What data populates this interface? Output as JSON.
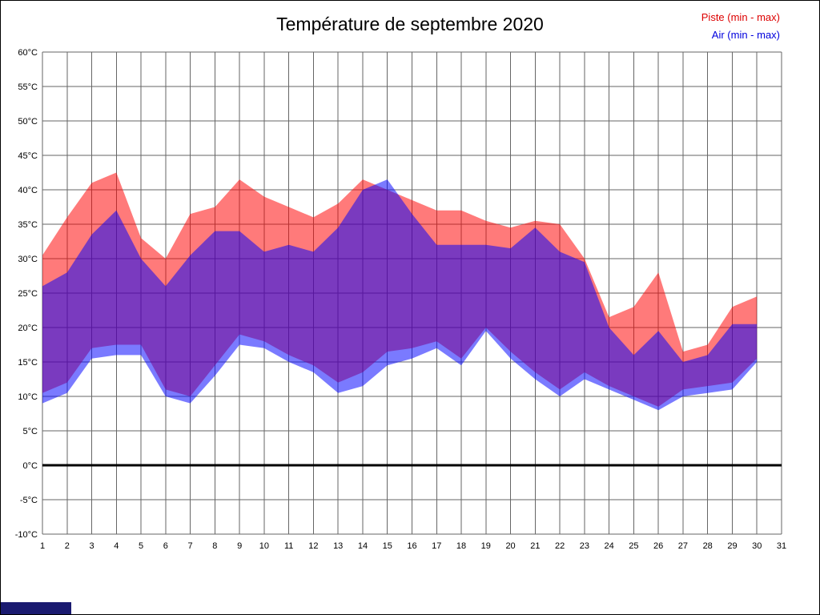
{
  "chart": {
    "title": "Température de septembre 2020",
    "legend": {
      "piste": "Piste (min - max)",
      "air": "Air (min - max)"
    },
    "colors": {
      "piste_text": "#dd0000",
      "air_text": "#0000dd",
      "piste_fill": "rgba(255,0,0,0.52)",
      "air_fill": "rgba(0,0,255,0.52)",
      "grid": "#666666",
      "zero_line": "#000000",
      "tick_text": "#000000",
      "corner_artifact": "#1a1a70"
    }
  },
  "chart_data": {
    "type": "area",
    "title": "Température de septembre 2020",
    "xlabel": "",
    "ylabel": "",
    "xlim": [
      1,
      31
    ],
    "ylim": [
      -10,
      60
    ],
    "grid": true,
    "legend_position": "top-right",
    "x": [
      1,
      2,
      3,
      4,
      5,
      6,
      7,
      8,
      9,
      10,
      11,
      12,
      13,
      14,
      15,
      16,
      17,
      18,
      19,
      20,
      21,
      22,
      23,
      24,
      25,
      26,
      27,
      28,
      29,
      30
    ],
    "x_tick_labels": [
      "1",
      "2",
      "3",
      "4",
      "5",
      "6",
      "7",
      "8",
      "9",
      "10",
      "11",
      "12",
      "13",
      "14",
      "15",
      "16",
      "17",
      "18",
      "19",
      "20",
      "21",
      "22",
      "23",
      "24",
      "25",
      "26",
      "27",
      "28",
      "29",
      "30",
      "31"
    ],
    "y_tick_labels": [
      "60°C",
      "55°C",
      "50°C",
      "45°C",
      "40°C",
      "35°C",
      "30°C",
      "25°C",
      "20°C",
      "15°C",
      "10°C",
      "5°C",
      "0°C",
      "-5°C",
      "-10°C"
    ],
    "series": [
      {
        "name": "Piste max",
        "color": "#ff0000",
        "values": [
          30.5,
          36,
          41,
          42.5,
          33,
          30,
          36.5,
          37.5,
          41.5,
          39,
          37.5,
          36,
          38,
          41.5,
          40,
          38.5,
          37,
          37,
          35.5,
          34.5,
          35.5,
          35,
          30,
          21.5,
          23,
          28,
          16.5,
          17.5,
          23,
          24.5
        ]
      },
      {
        "name": "Piste min",
        "color": "#ff0000",
        "values": [
          10.5,
          12,
          17,
          17.5,
          17.5,
          11,
          10,
          14.5,
          19,
          18,
          16,
          14.5,
          12,
          13.5,
          16.5,
          17,
          18,
          15.5,
          20,
          16.5,
          13.5,
          11,
          13.5,
          11.5,
          10,
          8.5,
          11,
          11.5,
          12,
          15.5
        ]
      },
      {
        "name": "Air max",
        "color": "#0000ff",
        "values": [
          26,
          28,
          33.5,
          37,
          30,
          26,
          30.5,
          34,
          34,
          31,
          32,
          31,
          34.5,
          40,
          41.5,
          36.5,
          32,
          32,
          32,
          31.5,
          34.5,
          31,
          29.5,
          20,
          16,
          19.5,
          15,
          16,
          20.5,
          20.5
        ]
      },
      {
        "name": "Air min",
        "color": "#0000ff",
        "values": [
          9,
          10.5,
          15.5,
          16,
          16,
          10,
          9,
          13,
          17.5,
          17,
          15,
          13.5,
          10.5,
          11.5,
          14.5,
          15.5,
          17,
          14.5,
          19.5,
          15.5,
          12.5,
          10,
          12.5,
          11,
          9.5,
          8,
          10,
          10.5,
          11,
          15
        ]
      }
    ]
  }
}
